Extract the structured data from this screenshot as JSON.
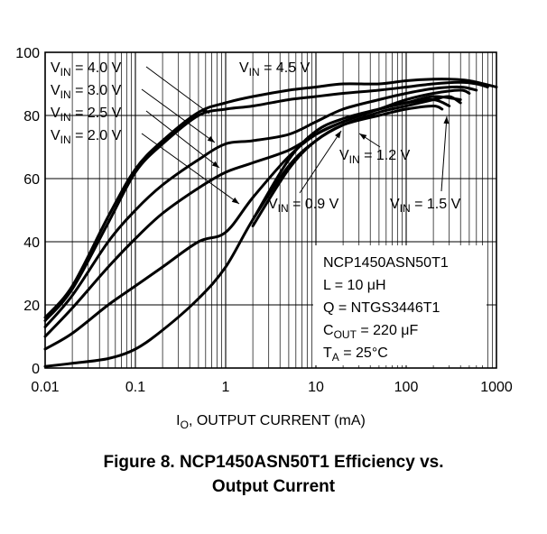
{
  "caption": {
    "line1": "Figure 8. NCP1450ASN50T1 Efficiency vs.",
    "line2": "Output Current"
  },
  "chart_data": {
    "type": "line",
    "title": "Figure 8. NCP1450ASN50T1 Efficiency vs. Output Current",
    "xlabel": {
      "main": "I",
      "sub": "O",
      "rest": ", OUTPUT CURRENT (mA)"
    },
    "ylabel": "",
    "x_scale": "log",
    "xlim": [
      0.01,
      1000
    ],
    "ylim": [
      0,
      100
    ],
    "x_ticks": [
      "0.01",
      "0.1",
      "1",
      "10",
      "100",
      "1000"
    ],
    "y_ticks": [
      "0",
      "20",
      "40",
      "60",
      "80",
      "100"
    ],
    "grid": true,
    "params": [
      {
        "main": "NCP1450ASN50T1",
        "sub": "",
        "rest": ""
      },
      {
        "main": "L = 10 μH",
        "sub": "",
        "rest": ""
      },
      {
        "main": "Q = NTGS3446T1",
        "sub": "",
        "rest": ""
      },
      {
        "main": "C",
        "sub": "OUT",
        "rest": " = 220 μF"
      },
      {
        "main": "T",
        "sub": "A",
        "rest": " = 25°C"
      }
    ],
    "series": [
      {
        "label": {
          "main": "V",
          "sub": "IN",
          "rest": " = 4.5 V"
        },
        "x": [
          0.01,
          0.02,
          0.05,
          0.1,
          0.2,
          0.5,
          1,
          2,
          5,
          10,
          20,
          50,
          100,
          200,
          300,
          500,
          1000
        ],
        "y": [
          16,
          26,
          48,
          63,
          72,
          81,
          84,
          86,
          88,
          89,
          90,
          90,
          91,
          91.5,
          91.5,
          91,
          89
        ]
      },
      {
        "label": {
          "main": "V",
          "sub": "IN",
          "rest": " = 4.0 V"
        },
        "x": [
          0.01,
          0.02,
          0.05,
          0.1,
          0.2,
          0.5,
          1,
          2,
          5,
          10,
          20,
          50,
          100,
          200,
          400,
          600,
          800
        ],
        "y": [
          15,
          25,
          46,
          62,
          71,
          80,
          82,
          83,
          85,
          86,
          87,
          88,
          89,
          90,
          90.5,
          90,
          89
        ]
      },
      {
        "label": {
          "main": "V",
          "sub": "IN",
          "rest": " = 3.0 V"
        },
        "x": [
          0.01,
          0.02,
          0.05,
          0.1,
          0.2,
          0.5,
          1,
          2,
          5,
          10,
          20,
          50,
          100,
          200,
          400,
          600
        ],
        "y": [
          13,
          23,
          40,
          50,
          58,
          66,
          71,
          72,
          74,
          78,
          82,
          85,
          87,
          88.5,
          89,
          88
        ]
      },
      {
        "label": {
          "main": "V",
          "sub": "IN",
          "rest": " = 2.5 V"
        },
        "x": [
          0.01,
          0.02,
          0.05,
          0.1,
          0.2,
          0.5,
          1,
          2,
          5,
          10,
          20,
          50,
          100,
          200,
          400,
          500
        ],
        "y": [
          10,
          19,
          32,
          41,
          49,
          57,
          62,
          65,
          69,
          74,
          78,
          82,
          85,
          87,
          88,
          87
        ]
      },
      {
        "label": {
          "main": "V",
          "sub": "IN",
          "rest": " = 2.0 V"
        },
        "x": [
          0.01,
          0.02,
          0.05,
          0.1,
          0.2,
          0.5,
          1,
          2,
          5,
          10,
          20,
          50,
          100,
          200,
          400
        ],
        "y": [
          6,
          11,
          20,
          26,
          32,
          40,
          43,
          54,
          67,
          74,
          78,
          82,
          84,
          86,
          85
        ]
      },
      {
        "label": {
          "main": "V",
          "sub": "IN",
          "rest": " = 1.5 V"
        },
        "x": [
          0.01,
          0.02,
          0.05,
          0.1,
          0.2,
          0.5,
          1,
          2,
          5,
          10,
          20,
          50,
          100,
          200,
          300,
          400
        ],
        "y": [
          0.5,
          1.5,
          3,
          6,
          12,
          22,
          32,
          47,
          64,
          72,
          77,
          81,
          83,
          85,
          86,
          84
        ]
      },
      {
        "label": {
          "main": "V",
          "sub": "IN",
          "rest": " = 1.2 V"
        },
        "x": [
          2,
          5,
          10,
          20,
          50,
          100,
          200,
          300
        ],
        "y": [
          47,
          66,
          75,
          79,
          82,
          84,
          85,
          83
        ]
      },
      {
        "label": {
          "main": "V",
          "sub": "IN",
          "rest": " = 0.9 V"
        },
        "x": [
          2,
          5,
          10,
          20,
          50,
          100,
          200,
          250
        ],
        "y": [
          45,
          63,
          72,
          77,
          80,
          82,
          83,
          82
        ]
      }
    ]
  }
}
